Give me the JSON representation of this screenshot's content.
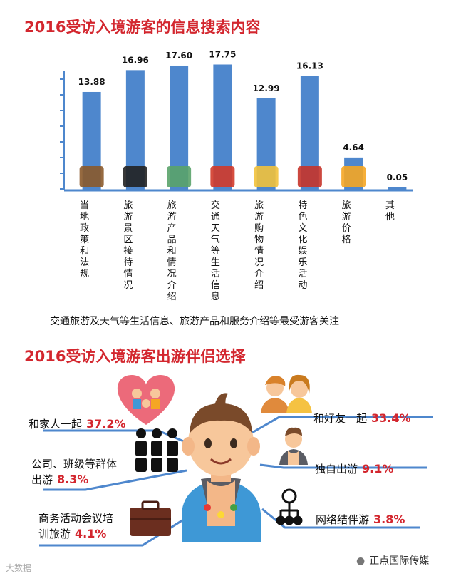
{
  "chart1": {
    "title": "2016受访入境游客的信息搜索内容",
    "caption": "交通旅游及天气等生活信息、旅游产品和服务介绍等最受游客关注"
  },
  "chart_data": [
    {
      "type": "bar",
      "title": "2016受访入境游客的信息搜索内容",
      "categories": [
        "当地政策和法规",
        "旅游景区接待情况",
        "旅游产品和情况介绍",
        "交通天气等生活信息",
        "旅游购物情况介绍",
        "特色文化娱乐活动",
        "旅游价格",
        "其他"
      ],
      "values": [
        13.88,
        16.96,
        17.6,
        17.75,
        12.99,
        16.13,
        4.64,
        0.05
      ],
      "value_labels": [
        "13.88",
        "16.96",
        "17.60",
        "17.75",
        "12.99",
        "16.13",
        "4.64",
        "0.05"
      ],
      "ylim": [
        0,
        20
      ],
      "bar_color": "#4e87cd",
      "icons": [
        "briefcase-icon",
        "receptionist-icon",
        "signpost-icon",
        "bus-icon",
        "shopping-bag-icon",
        "opera-figure-icon",
        "price-tag-icon",
        ""
      ]
    },
    {
      "type": "table",
      "title": "2016受访入境游客出游伴侣选择",
      "rows": [
        {
          "label": "和家人一起",
          "value": "37.2%",
          "icon": "family-heart-icon"
        },
        {
          "label": "公司、班级等群体出游",
          "value": "8.3%",
          "icon": "group-icon"
        },
        {
          "label": "商务活动会议培训旅游",
          "value": "4.1%",
          "icon": "briefcase-icon"
        },
        {
          "label": "和好友一起",
          "value": "33.4%",
          "icon": "friends-icon"
        },
        {
          "label": "独自出游",
          "value": "9.1%",
          "icon": "single-person-icon"
        },
        {
          "label": "网络结伴游",
          "value": "3.8%",
          "icon": "network-icon"
        }
      ]
    }
  ],
  "chart2": {
    "title": "2016受访入境游客出游伴侣选择",
    "family": {
      "line1": "和家人一起",
      "pct": "37.2%"
    },
    "group": {
      "line1": "公司、班级等群体",
      "line2": "出游",
      "pct": "8.3%"
    },
    "business": {
      "line1": "商务活动会议培",
      "line2": "训旅游",
      "pct": "4.1%"
    },
    "friends": {
      "line1": "和好友一起",
      "pct": "33.4%"
    },
    "alone": {
      "line1": "独自出游",
      "pct": "9.1%"
    },
    "network": {
      "line1": "网络结伴游",
      "pct": "3.8%"
    }
  },
  "footer": {
    "left": "大数据",
    "right": "正点国际传媒"
  },
  "colors": {
    "accent": "#d3262e",
    "bar": "#4e87cd",
    "line": "#4e87cd"
  }
}
